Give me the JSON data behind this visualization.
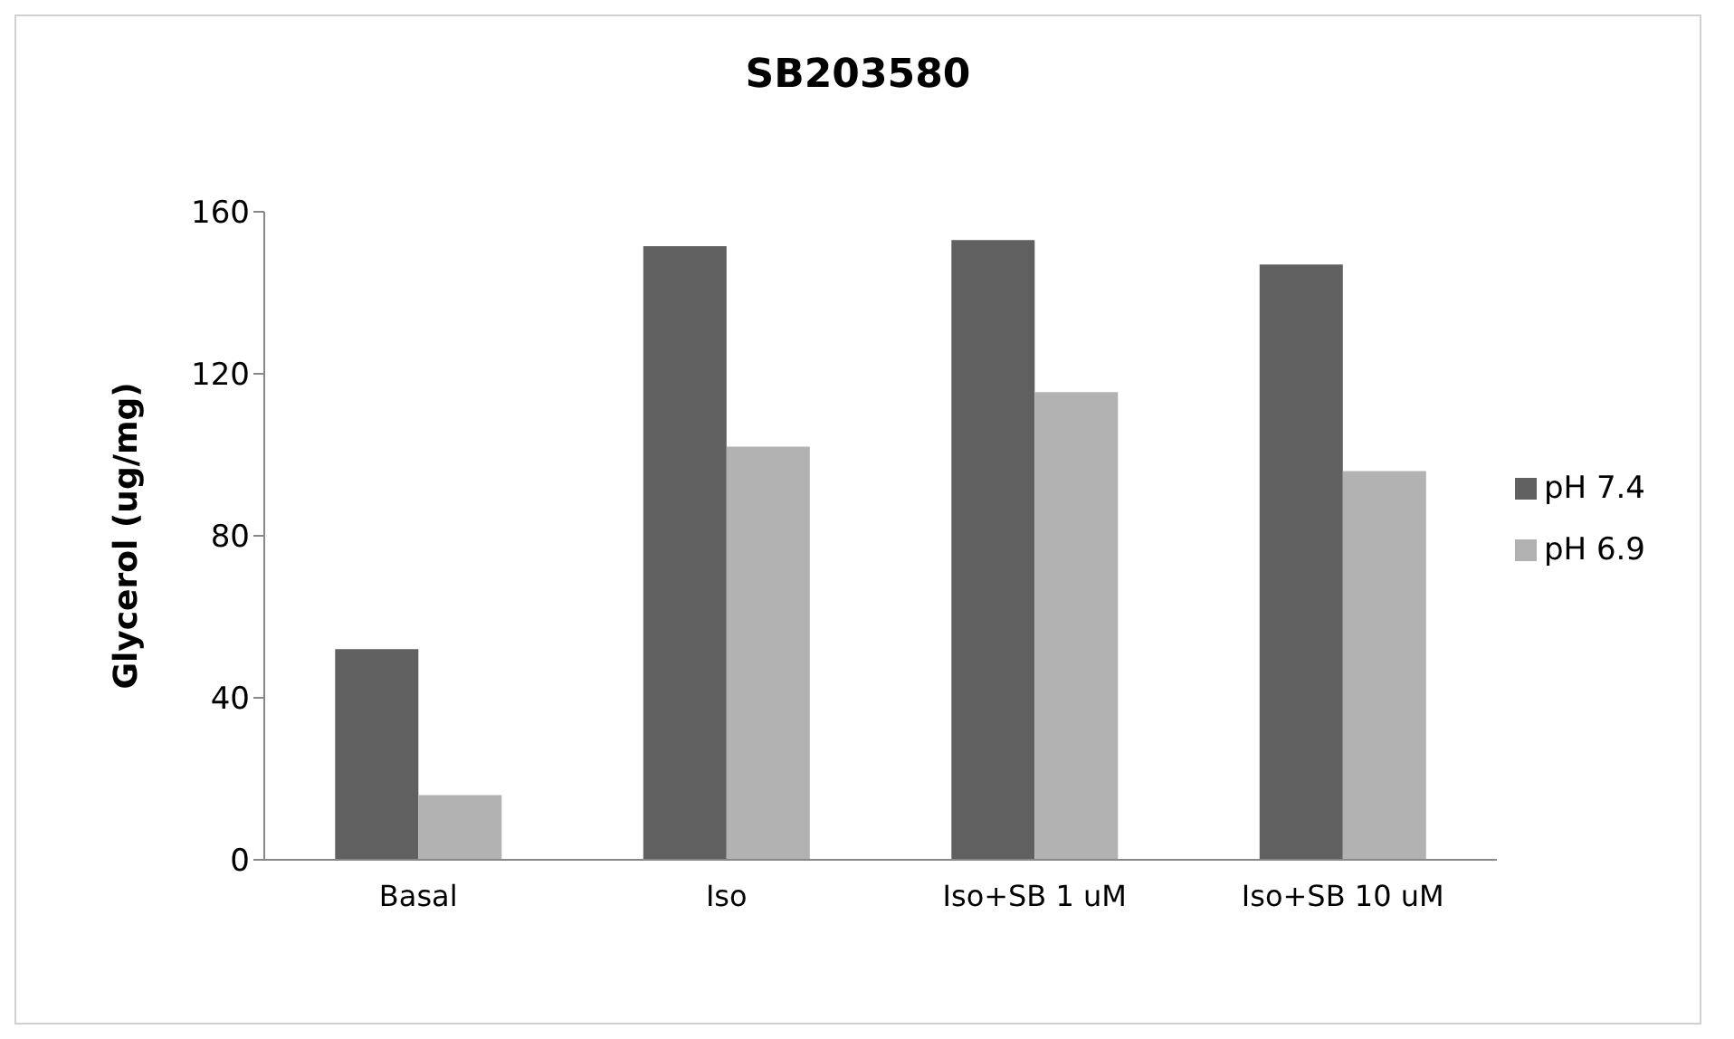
{
  "chart_data": {
    "type": "bar",
    "title": "SB203580",
    "ylabel": "Glycerol (ug/mg)",
    "categories": [
      "Basal",
      "Iso",
      "Iso+SB 1 uM",
      "Iso+SB 10 uM"
    ],
    "series": [
      {
        "name": "pH 7.4",
        "color": "#606060",
        "values": [
          52,
          151.5,
          153,
          147
        ]
      },
      {
        "name": "pH 6.9",
        "color": "#b2b2b2",
        "values": [
          16,
          102,
          115.5,
          96
        ]
      }
    ],
    "ylim": [
      0,
      160
    ],
    "yticks": [
      0,
      40,
      80,
      120,
      160
    ],
    "grid": false,
    "legend": "right"
  }
}
